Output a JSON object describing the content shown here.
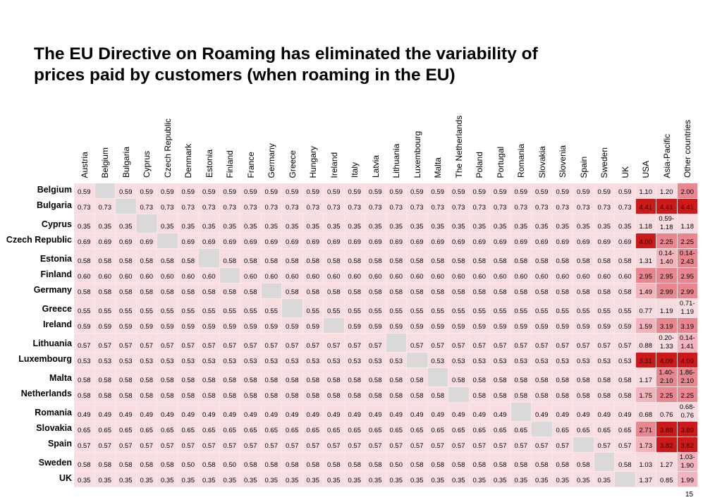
{
  "title_line1": "The EU Directive on Roaming has eliminated the variability of",
  "title_line2": "prices paid by customers (when roaming in the EU)",
  "page_number": "15",
  "colors": {
    "eu_cell": "#f8dde1",
    "blank_cell": "#d9d9d9",
    "tier_light": "#f7dcdf",
    "tier_mid": "#f1b5bb",
    "tier_strong": "#e8878f",
    "tier_dark": "#cc1a1a"
  },
  "columns": [
    "Austria",
    "Belgium",
    "Bulgaria",
    "Cyprus",
    "Czech Republic",
    "Denmark",
    "Estonia",
    "Finland",
    "France",
    "Germany",
    "Greece",
    "Hungary",
    "Ireland",
    "Italy",
    "Latvia",
    "Lithuania",
    "Luxembourg",
    "Malta",
    "The Netherlands",
    "Poland",
    "Portugal",
    "Romania",
    "Slovakia",
    "Slovenia",
    "Spain",
    "Sweden",
    "UK",
    "USA",
    "Asia-Pacific",
    "Other countries"
  ],
  "rows": [
    {
      "label": "Belgium",
      "tall": false,
      "blank": 1,
      "eu": "0.59",
      "usa": "1.10",
      "asia": "1.20",
      "other": "2.00"
    },
    {
      "label": "Bulgaria",
      "tall": false,
      "blank": 2,
      "eu": "0.73",
      "usa": "4.41",
      "asia": "4.41",
      "other": "4.41"
    },
    {
      "label": "Cyprus",
      "tall": true,
      "blank": 3,
      "eu": "0.35",
      "usa": "1.18",
      "asia": "0.59-\n1.18",
      "other": "1.18"
    },
    {
      "label": "Czech Republic",
      "tall": false,
      "blank": 4,
      "eu": "0.69",
      "usa": "4.00",
      "asia": "2.25",
      "other": "2.25"
    },
    {
      "label": "Estonia",
      "tall": true,
      "blank": 6,
      "eu": "0.58",
      "usa": "1.31",
      "asia": "0.14-\n1.40",
      "other": "0.14-\n2.43"
    },
    {
      "label": "Finland",
      "tall": false,
      "blank": 7,
      "eu": "0.60",
      "usa": "2.95",
      "asia": "2.95",
      "other": "2.95"
    },
    {
      "label": "Germany",
      "tall": false,
      "blank": 9,
      "eu": "0.58",
      "usa": "1.49",
      "asia": "2.99",
      "other": "2.99"
    },
    {
      "label": "Greece",
      "tall": true,
      "blank": 10,
      "eu": "0.55",
      "usa": "0.77",
      "asia": "1.19",
      "other": "0.71-\n1.19"
    },
    {
      "label": "Ireland",
      "tall": false,
      "blank": 12,
      "eu": "0.59",
      "usa": "1.59",
      "asia": "3.19",
      "other": "3.19"
    },
    {
      "label": "Lithuania",
      "tall": true,
      "blank": 15,
      "eu": "0.57",
      "usa": "0.88",
      "asia": "0.20-\n1.33",
      "other": "0.14-\n1.41"
    },
    {
      "label": "Luxembourg",
      "tall": false,
      "blank": 16,
      "eu": "0.53",
      "usa": "3.31",
      "asia": "4.09",
      "other": "4.09"
    },
    {
      "label": "Malta",
      "tall": true,
      "blank": 17,
      "eu": "0.58",
      "usa": "1.17",
      "asia": "1.40-\n2.10",
      "other": "1.86-\n2.10"
    },
    {
      "label": "Netherlands",
      "tall": false,
      "blank": 18,
      "eu": "0.58",
      "usa": "1.75",
      "asia": "2.25",
      "other": "2.25"
    },
    {
      "label": "Romania",
      "tall": true,
      "blank": 21,
      "eu": "0.49",
      "usa": "0.68",
      "asia": "0.76",
      "other": "0.68-\n0.76"
    },
    {
      "label": "Slovakia",
      "tall": false,
      "blank": 22,
      "eu": "0.65",
      "usa": "2.71",
      "asia": "3.89",
      "other": "3.89"
    },
    {
      "label": "Spain",
      "tall": false,
      "blank": 24,
      "eu": "0.57",
      "usa": "1.73",
      "asia": "3.82",
      "other": "3.82"
    },
    {
      "label": "Sweden",
      "tall": true,
      "blank": 25,
      "eu": "0.58",
      "usa": "1.03",
      "asia": "1.27",
      "other": "1.03-\n1.90",
      "overrides": {
        "5": "0.50",
        "7": "0.50",
        "15": "0.50"
      }
    },
    {
      "label": "UK",
      "tall": false,
      "blank": 26,
      "eu": "0.35",
      "usa": "1.37",
      "asia": "0.85",
      "other": "1.99"
    }
  ]
}
